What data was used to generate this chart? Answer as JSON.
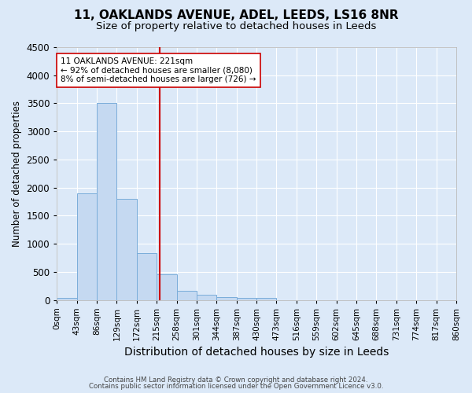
{
  "title1": "11, OAKLANDS AVENUE, ADEL, LEEDS, LS16 8NR",
  "title2": "Size of property relative to detached houses in Leeds",
  "xlabel": "Distribution of detached houses by size in Leeds",
  "ylabel": "Number of detached properties",
  "footnote1": "Contains HM Land Registry data © Crown copyright and database right 2024.",
  "footnote2": "Contains public sector information licensed under the Open Government Licence v3.0.",
  "bin_labels": [
    "0sqm",
    "43sqm",
    "86sqm",
    "129sqm",
    "172sqm",
    "215sqm",
    "258sqm",
    "301sqm",
    "344sqm",
    "387sqm",
    "430sqm",
    "473sqm",
    "516sqm",
    "559sqm",
    "602sqm",
    "645sqm",
    "688sqm",
    "731sqm",
    "774sqm",
    "817sqm",
    "860sqm"
  ],
  "bin_edges": [
    0,
    43,
    86,
    129,
    172,
    215,
    258,
    301,
    344,
    387,
    430,
    473,
    516,
    559,
    602,
    645,
    688,
    731,
    774,
    817,
    860
  ],
  "bar_heights": [
    30,
    1900,
    3500,
    1800,
    830,
    450,
    160,
    90,
    50,
    30,
    30,
    0,
    0,
    0,
    0,
    0,
    0,
    0,
    0,
    0
  ],
  "bar_color": "#c5d9f1",
  "bar_edgecolor": "#7aadda",
  "vline_color": "#cc0000",
  "vline_x": 221,
  "annotation_text": "11 OAKLANDS AVENUE: 221sqm\n← 92% of detached houses are smaller (8,080)\n8% of semi-detached houses are larger (726) →",
  "annotation_box_color": "white",
  "annotation_box_edgecolor": "#cc0000",
  "ylim": [
    0,
    4500
  ],
  "background_color": "#dce9f8",
  "plot_bg_color": "#dce9f8",
  "grid_color": "white",
  "title1_fontsize": 11,
  "title2_fontsize": 9.5,
  "xlabel_fontsize": 10,
  "ylabel_fontsize": 8.5
}
